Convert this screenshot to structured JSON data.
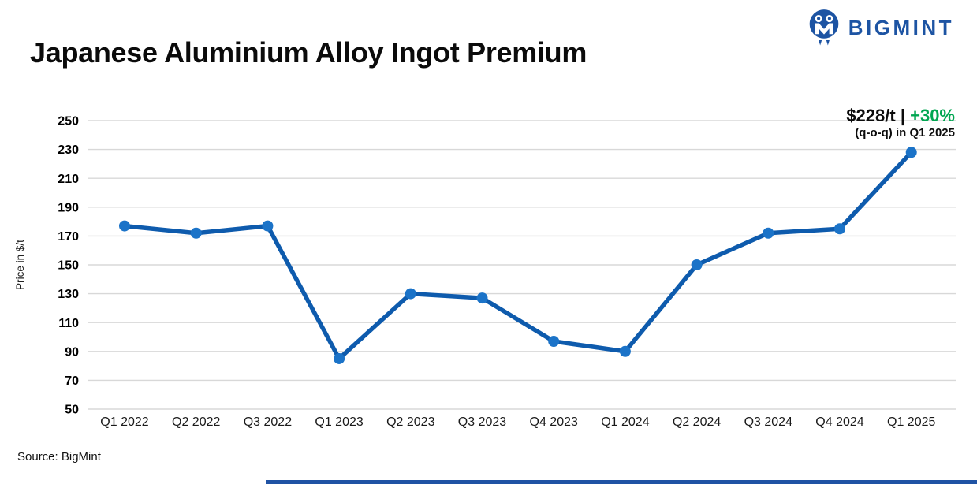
{
  "brand": {
    "name": "BIGMINT",
    "color": "#1d54a3"
  },
  "title": "Japanese Aluminium Alloy Ingot Premium",
  "annotation": {
    "price": "$228/t",
    "divider": "|",
    "change": "+30%",
    "detail": "(q-o-q) in Q1 2025",
    "change_color": "#00a651"
  },
  "source": "Source: BigMint",
  "chart_data": {
    "type": "line",
    "title": "Japanese Aluminium Alloy Ingot Premium",
    "series_name": "Japanese aluminium alloy ingot premium",
    "categories": [
      "Q1 2022",
      "Q2 2022",
      "Q3 2022",
      "Q1 2023",
      "Q2 2023",
      "Q3 2023",
      "Q4 2023",
      "Q1 2024",
      "Q2 2024",
      "Q3 2024",
      "Q4 2024",
      "Q1 2025"
    ],
    "values": [
      177,
      172,
      177,
      85,
      130,
      127,
      97,
      90,
      150,
      172,
      175,
      228
    ],
    "xlabel": "",
    "ylabel": "Price in $/t",
    "ylim": [
      50,
      250
    ],
    "ytick_step": 20,
    "grid": "horizontal",
    "legend": "none",
    "line_color": "#0e5bad",
    "marker_color": "#1b73c8",
    "grid_color": "#d8d8d8",
    "tick_label_color": "#1a1a1a"
  }
}
